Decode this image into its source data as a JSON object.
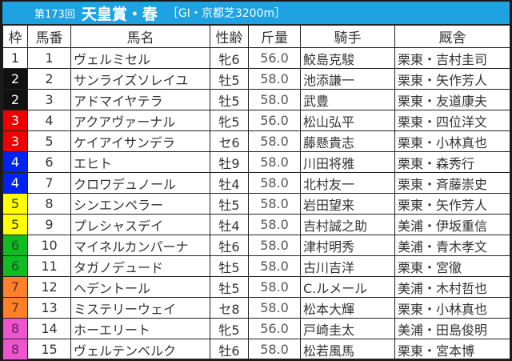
{
  "title": {
    "round": "第173回",
    "race": "天皇賞・春",
    "info": "［GI・京都芝3200m］"
  },
  "headers": [
    "枠",
    "馬番",
    "馬名",
    "性齢",
    "斤量",
    "騎手",
    "厩舎"
  ],
  "frame_colors": {
    "1": "#ffffff",
    "2": "#111111",
    "3": "#ee0000",
    "4": "#0022ee",
    "5": "#ffff00",
    "6": "#11bb22",
    "7": "#ff7f2a",
    "8": "#ee55cc"
  },
  "frame_text_colors": {
    "1": "#333333",
    "2": "#ffffff",
    "3": "#ffffff",
    "4": "#ffffff",
    "5": "#333333",
    "6": "#225522",
    "7": "#553322",
    "8": "#662266"
  },
  "rows": [
    {
      "waku": "1",
      "num": "1",
      "name": "ヴェルミセル",
      "sex_age": "牝6",
      "weight": "56.0",
      "jockey": "鮫島克駿",
      "stable": "栗東・吉村圭司"
    },
    {
      "waku": "2",
      "num": "2",
      "name": "サンライズソレイユ",
      "sex_age": "牡5",
      "weight": "58.0",
      "jockey": "池添謙一",
      "stable": "栗東・矢作芳人"
    },
    {
      "waku": "2",
      "num": "3",
      "name": "アドマイヤテラ",
      "sex_age": "牡5",
      "weight": "58.0",
      "jockey": "武豊",
      "stable": "栗東・友道康夫"
    },
    {
      "waku": "3",
      "num": "4",
      "name": "アクアヴァーナル",
      "sex_age": "牝5",
      "weight": "56.0",
      "jockey": "松山弘平",
      "stable": "栗東・四位洋文"
    },
    {
      "waku": "3",
      "num": "5",
      "name": "ケイアイサンデラ",
      "sex_age": "セ6",
      "weight": "58.0",
      "jockey": "藤懸貴志",
      "stable": "栗東・小林真也"
    },
    {
      "waku": "4",
      "num": "6",
      "name": "エヒト",
      "sex_age": "牡9",
      "weight": "58.0",
      "jockey": "川田将雅",
      "stable": "栗東・森秀行"
    },
    {
      "waku": "4",
      "num": "7",
      "name": "クロワデュノール",
      "sex_age": "牡4",
      "weight": "58.0",
      "jockey": "北村友一",
      "stable": "栗東・斉藤崇史"
    },
    {
      "waku": "5",
      "num": "8",
      "name": "シンエンペラー",
      "sex_age": "牡5",
      "weight": "58.0",
      "jockey": "岩田望来",
      "stable": "栗東・矢作芳人"
    },
    {
      "waku": "5",
      "num": "9",
      "name": "プレシャスデイ",
      "sex_age": "牡4",
      "weight": "58.0",
      "jockey": "吉村誠之助",
      "stable": "美浦・伊坂重信"
    },
    {
      "waku": "6",
      "num": "10",
      "name": "マイネルカンパーナ",
      "sex_age": "牡6",
      "weight": "58.0",
      "jockey": "津村明秀",
      "stable": "美浦・青木孝文"
    },
    {
      "waku": "6",
      "num": "11",
      "name": "タガノデュード",
      "sex_age": "牡5",
      "weight": "58.0",
      "jockey": "古川吉洋",
      "stable": "栗東・宮徹"
    },
    {
      "waku": "7",
      "num": "12",
      "name": "ヘデントール",
      "sex_age": "牡5",
      "weight": "58.0",
      "jockey": "C.ルメール",
      "stable": "美浦・木村哲也"
    },
    {
      "waku": "7",
      "num": "13",
      "name": "ミステリーウェイ",
      "sex_age": "セ8",
      "weight": "58.0",
      "jockey": "松本大輝",
      "stable": "栗東・小林真也"
    },
    {
      "waku": "8",
      "num": "14",
      "name": "ホーエリート",
      "sex_age": "牝5",
      "weight": "56.0",
      "jockey": "戸崎圭太",
      "stable": "美浦・田島俊明"
    },
    {
      "waku": "8",
      "num": "15",
      "name": "ヴェルテンベルク",
      "sex_age": "牡6",
      "weight": "58.0",
      "jockey": "松若風馬",
      "stable": "栗東・宮本博"
    }
  ]
}
